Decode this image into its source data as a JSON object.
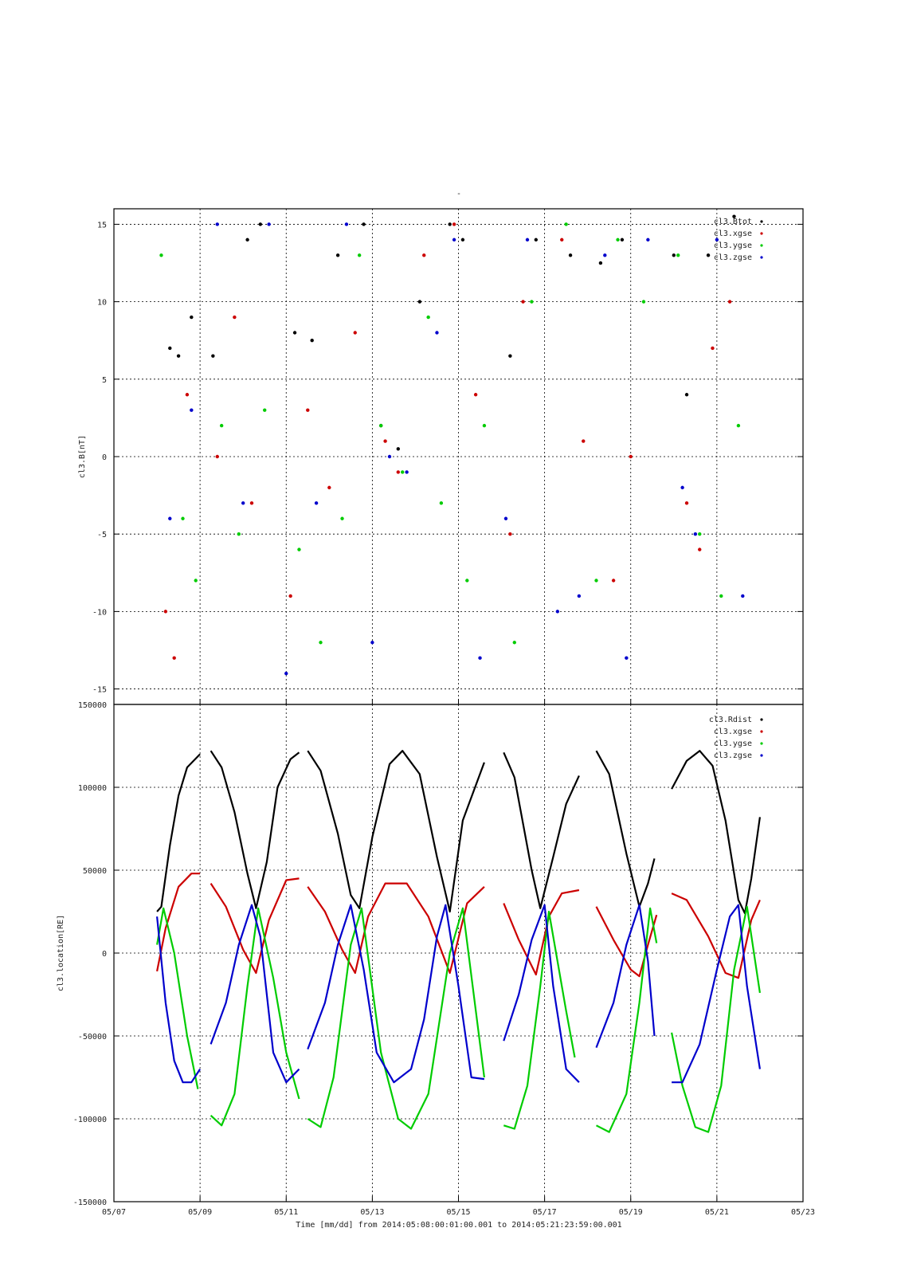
{
  "figure_title": "-",
  "colors": {
    "black": "#000000",
    "red": "#cc0000",
    "green": "#00cc00",
    "blue": "#0000cc",
    "grid": "#000000"
  },
  "x_axis": {
    "xlabel": "Time [mm/dd]  from 2014:05:08:00:01:00.001  to  2014:05:21:23:59:00.001",
    "xlim_days": [
      7,
      23
    ],
    "tick_days": [
      7,
      9,
      11,
      13,
      15,
      17,
      19,
      21,
      23
    ],
    "tick_labels": [
      "05/07",
      "05/09",
      "05/11",
      "05/13",
      "05/15",
      "05/17",
      "05/19",
      "05/21",
      "05/23"
    ]
  },
  "chart_data": [
    {
      "type": "scatter",
      "ylabel": "cl3.B[nT]",
      "ylim": [
        -16,
        16
      ],
      "yticks": [
        -15,
        -10,
        -5,
        0,
        5,
        10,
        15
      ],
      "ytick_labels": [
        "-15",
        "-10",
        "-5",
        "0",
        "5",
        "10",
        "15"
      ],
      "grid": true,
      "legend_position": "top-right",
      "x_units": "day of May 2014",
      "series": [
        {
          "name": "cl3.Btot",
          "color": "#000000",
          "x": [
            8.3,
            8.5,
            8.8,
            9.3,
            10.1,
            10.4,
            11.2,
            11.6,
            12.2,
            12.8,
            13.2,
            13.6,
            14.1,
            14.8,
            15.1,
            16.2,
            16.8,
            17.6,
            18.3,
            18.8,
            20.0,
            20.3,
            20.8,
            21.4
          ],
          "y": [
            7.0,
            6.5,
            9.0,
            6.5,
            14.0,
            15.0,
            8.0,
            7.5,
            13.0,
            15.0,
            2.0,
            0.5,
            10.0,
            15.0,
            14.0,
            6.5,
            14.0,
            13.0,
            12.5,
            14.0,
            13.0,
            4.0,
            13.0,
            15.5
          ]
        },
        {
          "name": "cl3.xgse",
          "color": "#cc0000",
          "x": [
            8.2,
            8.4,
            8.7,
            9.4,
            9.8,
            10.2,
            11.1,
            11.5,
            12.0,
            12.6,
            13.3,
            13.6,
            14.2,
            14.9,
            15.4,
            16.2,
            16.5,
            17.4,
            17.9,
            18.6,
            19.0,
            20.3,
            20.6,
            20.9,
            21.3
          ],
          "y": [
            -10.0,
            -13.0,
            4.0,
            0.0,
            9.0,
            -3.0,
            -9.0,
            3.0,
            -2.0,
            8.0,
            1.0,
            -1.0,
            13.0,
            15.0,
            4.0,
            -5.0,
            10.0,
            14.0,
            1.0,
            -8.0,
            0.0,
            -3.0,
            -6.0,
            7.0,
            10.0
          ]
        },
        {
          "name": "cl3.ygse",
          "color": "#00cc00",
          "x": [
            8.1,
            8.6,
            8.9,
            9.5,
            9.9,
            10.5,
            11.3,
            11.8,
            12.3,
            12.7,
            13.2,
            13.7,
            14.3,
            14.6,
            15.2,
            15.6,
            16.3,
            16.7,
            17.5,
            18.2,
            18.7,
            19.3,
            20.1,
            20.6,
            21.1,
            21.5
          ],
          "y": [
            13.0,
            -4.0,
            -8.0,
            2.0,
            -5.0,
            3.0,
            -6.0,
            -12.0,
            -4.0,
            13.0,
            2.0,
            -1.0,
            9.0,
            -3.0,
            -8.0,
            2.0,
            -12.0,
            10.0,
            15.0,
            -8.0,
            14.0,
            10.0,
            13.0,
            -5.0,
            -9.0,
            2.0
          ]
        },
        {
          "name": "cl3.zgse",
          "color": "#0000cc",
          "x": [
            8.3,
            8.8,
            9.4,
            10.0,
            10.6,
            11.0,
            11.7,
            12.4,
            13.0,
            13.4,
            13.8,
            14.5,
            14.9,
            15.5,
            16.1,
            16.6,
            17.3,
            17.8,
            18.4,
            18.9,
            19.4,
            20.2,
            20.5,
            21.0,
            21.6
          ],
          "y": [
            -4.0,
            3.0,
            15.0,
            -3.0,
            15.0,
            -14.0,
            -3.0,
            15.0,
            -12.0,
            0.0,
            -1.0,
            8.0,
            14.0,
            -13.0,
            -4.0,
            14.0,
            -10.0,
            -9.0,
            13.0,
            -13.0,
            14.0,
            -2.0,
            -5.0,
            14.0,
            -9.0
          ]
        }
      ]
    },
    {
      "type": "line",
      "ylabel": "cl3.location[RE]",
      "ylim": [
        -150000,
        150000
      ],
      "yticks": [
        -150000,
        -100000,
        -50000,
        0,
        50000,
        100000,
        150000
      ],
      "ytick_labels": [
        "-150000",
        "-100000",
        "-50000",
        "0",
        "50000",
        "100000",
        "150000"
      ],
      "grid": true,
      "legend_position": "top-right",
      "x_units": "day of May 2014",
      "series": [
        {
          "name": "cl3.Rdist",
          "color": "#000000",
          "segments": [
            {
              "x": [
                8.0,
                8.1,
                8.3,
                8.5,
                8.7,
                9.0
              ],
              "y": [
                25000,
                28000,
                65000,
                95000,
                112000,
                120000
              ]
            },
            {
              "x": [
                9.25,
                9.5,
                9.8,
                10.1,
                10.3,
                10.55,
                10.8,
                11.1,
                11.3
              ],
              "y": [
                122000,
                112000,
                85000,
                48000,
                27000,
                55000,
                100000,
                117000,
                121000
              ]
            },
            {
              "x": [
                11.5,
                11.8,
                12.2,
                12.5,
                12.7,
                13.0,
                13.4,
                13.7,
                14.1,
                14.5,
                14.8,
                15.1,
                15.6
              ],
              "y": [
                122000,
                110000,
                72000,
                35000,
                27000,
                70000,
                114000,
                122000,
                108000,
                58000,
                25000,
                80000,
                115000
              ]
            },
            {
              "x": [
                16.05,
                16.3,
                16.7,
                16.9,
                17.2,
                17.5,
                17.8
              ],
              "y": [
                121000,
                106000,
                50000,
                27000,
                58000,
                90000,
                107000
              ]
            },
            {
              "x": [
                18.2,
                18.5,
                18.9,
                19.2,
                19.4,
                19.55
              ],
              "y": [
                122000,
                108000,
                60000,
                28000,
                42000,
                57000
              ]
            },
            {
              "x": [
                19.95,
                20.3,
                20.6,
                20.9,
                21.2,
                21.5,
                21.65,
                21.8,
                22.0
              ],
              "y": [
                99000,
                116000,
                122000,
                113000,
                80000,
                32000,
                24000,
                45000,
                82000
              ]
            }
          ]
        },
        {
          "name": "cl3.xgse",
          "color": "#cc0000",
          "segments": [
            {
              "x": [
                8.0,
                8.2,
                8.5,
                8.8,
                9.0
              ],
              "y": [
                -11000,
                15000,
                40000,
                48000,
                48000
              ]
            },
            {
              "x": [
                9.25,
                9.6,
                10.0,
                10.3,
                10.6,
                11.0,
                11.3
              ],
              "y": [
                42000,
                28000,
                2000,
                -12000,
                20000,
                44000,
                45000
              ]
            },
            {
              "x": [
                11.5,
                11.9,
                12.3,
                12.6,
                12.9,
                13.3,
                13.8,
                14.3,
                14.8,
                15.2,
                15.6
              ],
              "y": [
                40000,
                25000,
                2000,
                -12000,
                22000,
                42000,
                42000,
                22000,
                -12000,
                30000,
                40000
              ]
            },
            {
              "x": [
                16.05,
                16.4,
                16.8,
                17.1,
                17.4,
                17.8
              ],
              "y": [
                30000,
                8000,
                -13000,
                22000,
                36000,
                38000
              ]
            },
            {
              "x": [
                18.2,
                18.6,
                19.0,
                19.2,
                19.4,
                19.6
              ],
              "y": [
                28000,
                8000,
                -10000,
                -14000,
                5000,
                23000
              ]
            },
            {
              "x": [
                19.95,
                20.3,
                20.8,
                21.2,
                21.5,
                21.8,
                22.0
              ],
              "y": [
                36000,
                32000,
                10000,
                -12000,
                -15000,
                20000,
                32000
              ]
            }
          ]
        },
        {
          "name": "cl3.ygse",
          "color": "#00cc00",
          "segments": [
            {
              "x": [
                8.0,
                8.15,
                8.4,
                8.7,
                8.95
              ],
              "y": [
                5000,
                27000,
                0,
                -50000,
                -82000
              ]
            },
            {
              "x": [
                9.25,
                9.5,
                9.8,
                10.1,
                10.35,
                10.7,
                11.0,
                11.3
              ],
              "y": [
                -98000,
                -104000,
                -85000,
                -20000,
                27000,
                -15000,
                -60000,
                -88000
              ]
            },
            {
              "x": [
                11.5,
                11.8,
                12.1,
                12.5,
                12.75,
                13.2,
                13.6,
                13.9,
                14.3,
                14.8,
                15.1,
                15.6
              ],
              "y": [
                -100000,
                -105000,
                -75000,
                5000,
                27000,
                -60000,
                -100000,
                -106000,
                -85000,
                0,
                27000,
                -75000
              ]
            },
            {
              "x": [
                16.05,
                16.3,
                16.6,
                16.9,
                17.1,
                17.5,
                17.7
              ],
              "y": [
                -104000,
                -106000,
                -80000,
                -20000,
                25000,
                -35000,
                -63000
              ]
            },
            {
              "x": [
                18.2,
                18.5,
                18.9,
                19.2,
                19.45,
                19.6
              ],
              "y": [
                -104000,
                -108000,
                -85000,
                -30000,
                27000,
                6000
              ]
            },
            {
              "x": [
                19.95,
                20.2,
                20.5,
                20.8,
                21.1,
                21.4,
                21.7,
                22.0
              ],
              "y": [
                -48000,
                -80000,
                -105000,
                -108000,
                -80000,
                -10000,
                28000,
                -24000
              ]
            }
          ]
        },
        {
          "name": "cl3.zgse",
          "color": "#0000cc",
          "segments": [
            {
              "x": [
                8.0,
                8.2,
                8.4,
                8.6,
                8.8,
                9.0
              ],
              "y": [
                22000,
                -30000,
                -65000,
                -78000,
                -78000,
                -70000
              ]
            },
            {
              "x": [
                9.25,
                9.6,
                9.9,
                10.2,
                10.4,
                10.7,
                11.0,
                11.3
              ],
              "y": [
                -55000,
                -30000,
                5000,
                29000,
                10000,
                -60000,
                -78000,
                -70000
              ]
            },
            {
              "x": [
                11.5,
                11.9,
                12.2,
                12.5,
                12.8,
                13.1,
                13.5,
                13.9,
                14.2,
                14.5,
                14.7,
                15.0,
                15.3,
                15.6
              ],
              "y": [
                -58000,
                -30000,
                5000,
                29000,
                -10000,
                -60000,
                -78000,
                -70000,
                -40000,
                10000,
                29000,
                -20000,
                -75000,
                -76000
              ]
            },
            {
              "x": [
                16.05,
                16.4,
                16.7,
                17.0,
                17.2,
                17.5,
                17.8
              ],
              "y": [
                -53000,
                -25000,
                8000,
                29000,
                -20000,
                -70000,
                -78000
              ]
            },
            {
              "x": [
                18.2,
                18.6,
                18.9,
                19.2,
                19.4,
                19.55
              ],
              "y": [
                -57000,
                -30000,
                5000,
                29000,
                -5000,
                -50000
              ]
            },
            {
              "x": [
                19.95,
                20.2,
                20.6,
                21.0,
                21.3,
                21.5,
                21.7,
                22.0
              ],
              "y": [
                -78000,
                -78000,
                -55000,
                -10000,
                22000,
                29000,
                -20000,
                -70000
              ]
            }
          ]
        }
      ]
    }
  ]
}
